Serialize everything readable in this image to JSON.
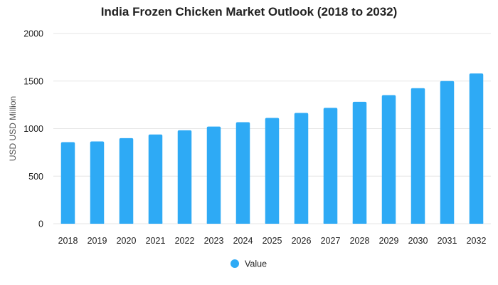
{
  "chart_data": {
    "type": "bar",
    "title": "India Frozen Chicken Market Outlook (2018 to 2032)",
    "xlabel": "",
    "ylabel": "USD USD Million",
    "categories": [
      "2018",
      "2019",
      "2020",
      "2021",
      "2022",
      "2023",
      "2024",
      "2025",
      "2026",
      "2027",
      "2028",
      "2029",
      "2030",
      "2031",
      "2032"
    ],
    "series": [
      {
        "name": "Value",
        "color": "#2eaaf5",
        "values": [
          858,
          865,
          900,
          938,
          982,
          1022,
          1067,
          1112,
          1165,
          1218,
          1282,
          1352,
          1425,
          1500,
          1580
        ]
      }
    ],
    "ylim": [
      0,
      2000
    ],
    "yticks": [
      "0",
      "500",
      "1000",
      "1500",
      "2000"
    ],
    "grid": true,
    "legend_position": "bottom-center",
    "gridline_color": "#e6e6e6"
  }
}
